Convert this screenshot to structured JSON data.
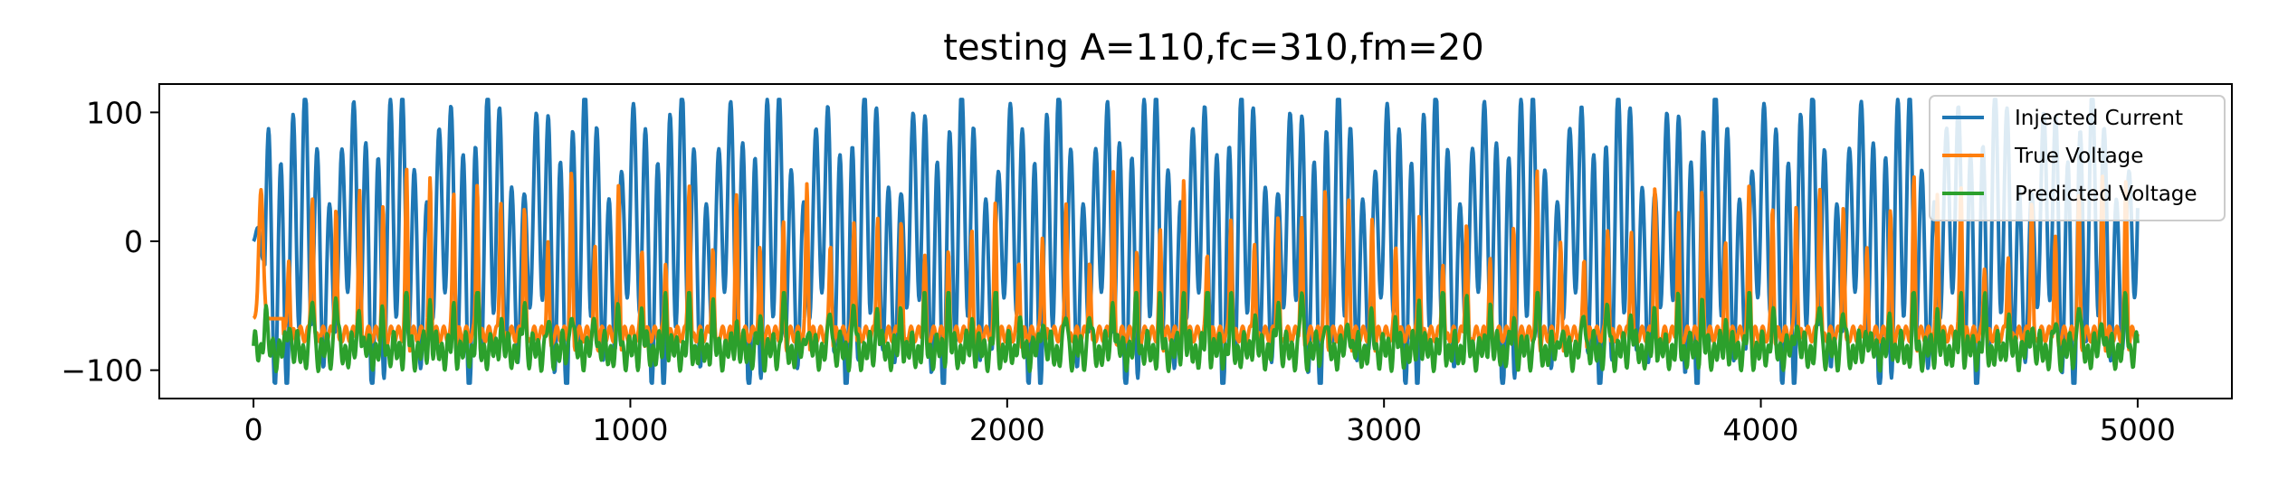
{
  "chart_data": {
    "type": "line",
    "title": "testing A=110,fc=310,fm=20",
    "xlabel": "",
    "ylabel": "",
    "xlim": [
      -250,
      5250
    ],
    "ylim": [
      -122,
      122
    ],
    "x_ticks": [
      0,
      1000,
      2000,
      3000,
      4000,
      5000
    ],
    "x_tick_labels": [
      "0",
      "1000",
      "2000",
      "3000",
      "4000",
      "5000"
    ],
    "y_ticks": [
      -100,
      0,
      100
    ],
    "y_tick_labels": [
      "−100",
      "0",
      "100"
    ],
    "grid": false,
    "legend_position": "top-right",
    "x_range": [
      0,
      5000
    ],
    "series": [
      {
        "name": "Injected Current",
        "color": "#1f77b4",
        "amplitude": 110,
        "carrier_period": 32.26,
        "envelope_period": 250,
        "range": [
          -110,
          110
        ]
      },
      {
        "name": "True Voltage",
        "color": "#ff7f0e",
        "range": [
          -85,
          60
        ],
        "baseline": -72,
        "peak_period": 62.5
      },
      {
        "name": "Predicted Voltage",
        "color": "#2ca02c",
        "range": [
          -105,
          -40
        ],
        "baseline": -85
      }
    ]
  }
}
